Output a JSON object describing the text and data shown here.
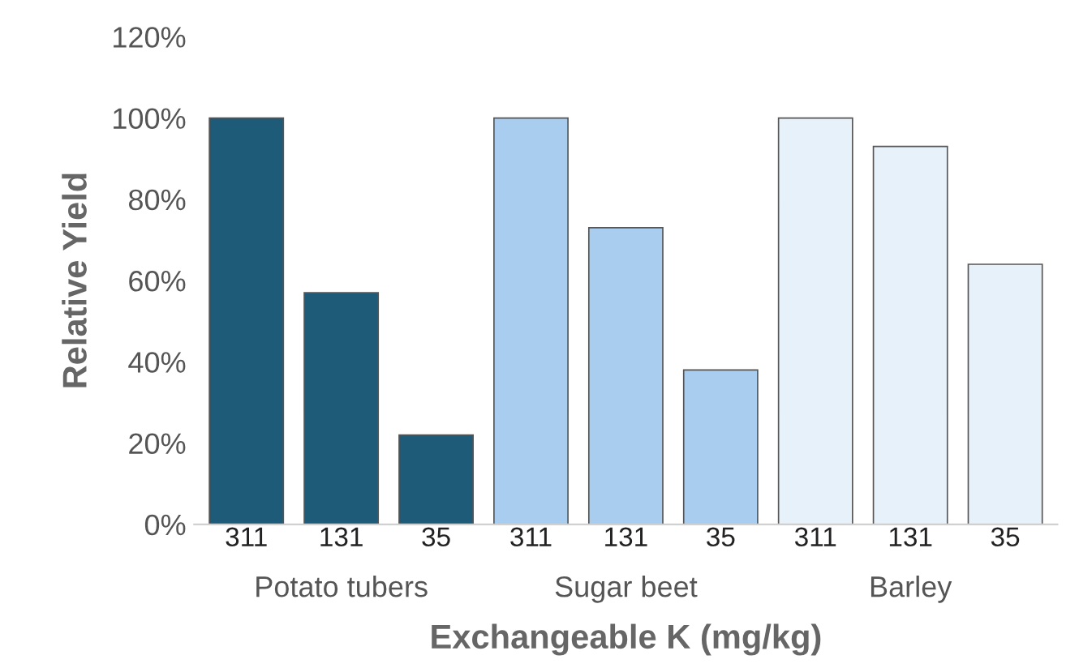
{
  "chart_data": {
    "type": "bar",
    "xlabel": "Exchangeable K (mg/kg)",
    "ylabel": "Relative Yield",
    "categories": [
      "311",
      "131",
      "35",
      "311",
      "131",
      "35",
      "311",
      "131",
      "35"
    ],
    "values": [
      100,
      57,
      22,
      100,
      73,
      38,
      100,
      93,
      64
    ],
    "colors": [
      "#1d5b78",
      "#1d5b78",
      "#1d5b78",
      "#a8cdee",
      "#a8cdee",
      "#a8cdee",
      "#e6f1fa",
      "#e6f1fa",
      "#e6f1fa"
    ],
    "annotations": [
      "Potato tubers",
      "Sugar beet",
      "Barley"
    ],
    "ylim": [
      0,
      120
    ],
    "yticks": [
      {
        "value": 0,
        "label": "0%"
      },
      {
        "value": 20,
        "label": "20%"
      },
      {
        "value": 40,
        "label": "40%"
      },
      {
        "value": 60,
        "label": "60%"
      },
      {
        "value": 80,
        "label": "80%"
      },
      {
        "value": 100,
        "label": "100%"
      },
      {
        "value": 120,
        "label": "120%"
      }
    ],
    "grid": false,
    "legend": false
  }
}
